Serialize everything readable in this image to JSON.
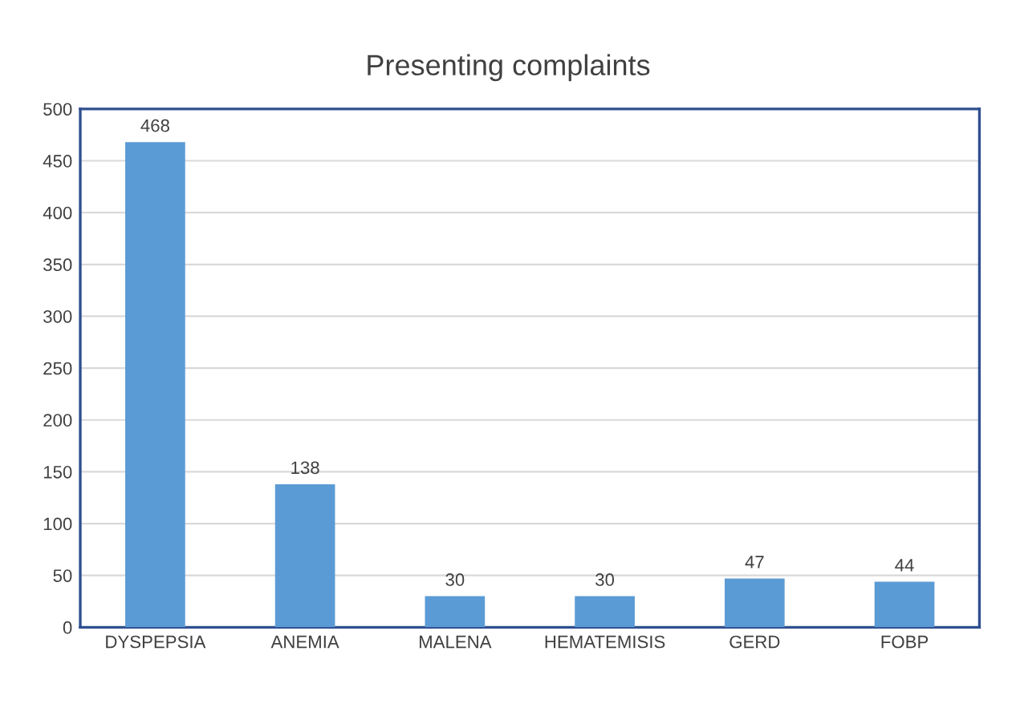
{
  "chart_data": {
    "type": "bar",
    "title": "Presenting complaints",
    "categories": [
      "DYSPEPSIA",
      "ANEMIA",
      "MALENA",
      "HEMATEMISIS",
      "GERD",
      "FOBP"
    ],
    "values": [
      468,
      138,
      30,
      30,
      47,
      44
    ],
    "color": "#5b9bd5",
    "ylim": [
      0,
      500
    ],
    "yticks": [
      0,
      50,
      100,
      150,
      200,
      250,
      300,
      350,
      400,
      450,
      500
    ],
    "grid": "y",
    "data_labels": true
  }
}
